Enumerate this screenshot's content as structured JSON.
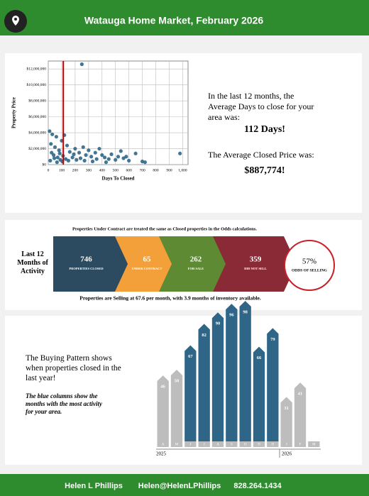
{
  "header": {
    "title": "Watauga Home Market, February 2026"
  },
  "scatter": {
    "type": "scatter",
    "y_label": "Property Price",
    "x_label": "Days To Closed",
    "color": "#2f6688",
    "marker_color": "#c00000",
    "marker_x": 112,
    "xlim": [
      0,
      1040
    ],
    "ylim": [
      0,
      13000000
    ],
    "xticks": [
      0,
      100,
      200,
      300,
      400,
      500,
      600,
      700,
      800,
      900,
      {
        "value": 1000,
        "label": "1,000"
      }
    ],
    "yticks": [
      {
        "value": 0,
        "label": "$0"
      },
      {
        "value": 2000000,
        "label": "$2,000,000"
      },
      {
        "value": 4000000,
        "label": "$4,000,000"
      },
      {
        "value": 6000000,
        "label": "$6,000,000"
      },
      {
        "value": 8000000,
        "label": "$8,000,000"
      },
      {
        "value": 10000000,
        "label": "$10,000,000"
      },
      {
        "value": 12000000,
        "label": "$12,000,000"
      }
    ],
    "x": [
      250,
      10,
      30,
      60,
      100,
      120,
      20,
      50,
      80,
      140,
      160,
      200,
      230,
      260,
      280,
      300,
      320,
      350,
      380,
      400,
      420,
      450,
      470,
      500,
      520,
      540,
      560,
      580,
      600,
      650,
      700,
      720,
      980,
      40,
      70,
      90,
      110,
      130,
      150,
      180,
      210,
      15,
      25,
      45,
      65,
      85,
      105,
      190,
      240,
      270,
      330,
      360,
      430
    ],
    "y": [
      12600000,
      4200000,
      3800000,
      3500000,
      3000000,
      3700000,
      2600000,
      2200000,
      1800000,
      2400000,
      1600000,
      2000000,
      1500000,
      2200000,
      1200000,
      1800000,
      1000000,
      1500000,
      2000000,
      1200000,
      900000,
      700000,
      1300000,
      600000,
      1000000,
      1700000,
      800000,
      1000000,
      500000,
      1400000,
      400000,
      300000,
      1400000,
      1200000,
      900000,
      600000,
      1100000,
      700000,
      500000,
      900000,
      600000,
      500000,
      1500000,
      800000,
      300000,
      1400000,
      400000,
      1300000,
      800000,
      500000,
      400000,
      700000,
      300000
    ]
  },
  "summary": {
    "days_intro": "In the last 12 months, the Average Days to close for your area was:",
    "days_value": "112 Days!",
    "price_intro": "The Average Closed Price was:",
    "price_value": "$887,774!"
  },
  "activity": {
    "top_note": "Properties Under Contract are treated the same as Closed properties in the Odds calculations.",
    "label": "Last 12 Months of Activity",
    "stages": [
      {
        "value": "746",
        "label": "PROPERTIES CLOSED",
        "color": "#2c4a60"
      },
      {
        "value": "65",
        "label": "UNDER CONTRACT",
        "color": "#f4a03a"
      },
      {
        "value": "262",
        "label": "FOR SALE",
        "color": "#5d8a32"
      },
      {
        "value": "359",
        "label": "DID NOT SELL",
        "color": "#8a2a36"
      }
    ],
    "odds_value": "57%",
    "odds_label": "ODDS OF SELLING",
    "bottom_note": "Properties are Selling at 67.6 per month, with 3.9 months of inventory available."
  },
  "pattern": {
    "text": "The Buying Pattern shows when properties closed in the last year!",
    "note": "The blue columns show the months with the most activity for your area.",
    "chart": {
      "type": "bar",
      "categories": [
        "A",
        "M",
        "J",
        "J",
        "A",
        "S",
        "O",
        "N",
        "D",
        "J",
        "F",
        "M"
      ],
      "values": [
        46,
        50,
        67,
        82,
        90,
        96,
        98,
        66,
        79,
        31,
        41,
        null
      ],
      "ylim": [
        0,
        100
      ],
      "colors": [
        "#bdbdbd",
        "#bdbdbd",
        "#2f6688",
        "#2f6688",
        "#2f6688",
        "#2f6688",
        "#2f6688",
        "#2f6688",
        "#2f6688",
        "#bdbdbd",
        "#bdbdbd",
        "#bdbdbd"
      ],
      "years": [
        "2025",
        "2026"
      ]
    }
  },
  "footer": {
    "name": "Helen L Phillips",
    "email": "Helen@HelenLPhillips",
    "phone": "828.264.1434"
  }
}
